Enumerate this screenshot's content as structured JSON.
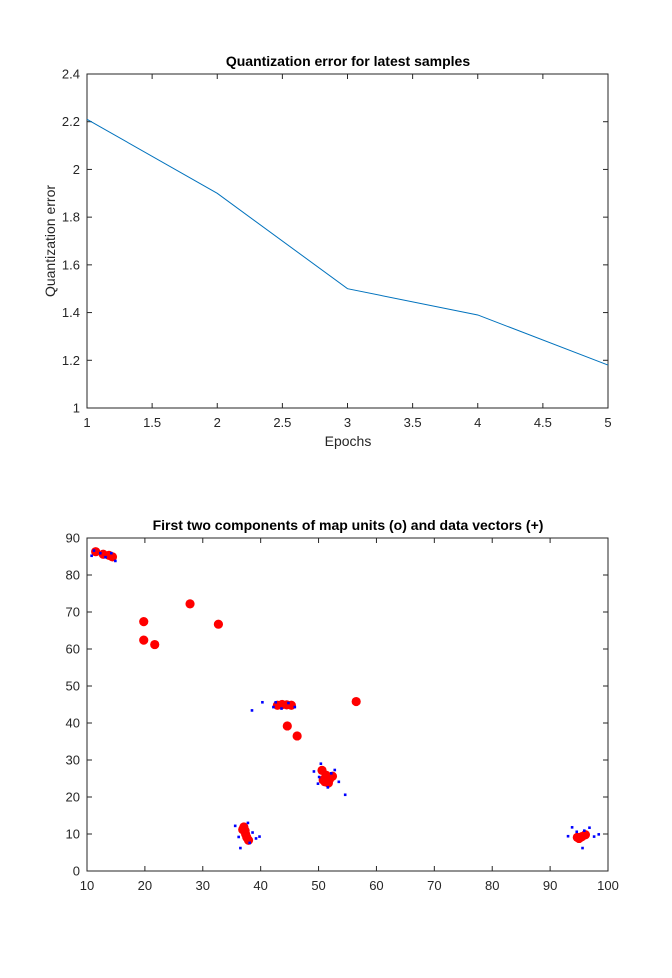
{
  "chart_data": [
    {
      "type": "line",
      "title": "Quantization error for latest samples",
      "xlabel": "Epochs",
      "ylabel": "Quantization error",
      "xlim": [
        1,
        5
      ],
      "ylim": [
        1,
        2.4
      ],
      "xticks": [
        "1",
        "1.5",
        "2",
        "2.5",
        "3",
        "3.5",
        "4",
        "4.5",
        "5"
      ],
      "yticks": [
        "1",
        "1.2",
        "1.4",
        "1.6",
        "1.8",
        "2",
        "2.2",
        "2.4"
      ],
      "grid": false,
      "line_color": "#0072bd",
      "series": [
        {
          "x": [
            1,
            2,
            3,
            4,
            5
          ],
          "values": [
            2.21,
            1.9,
            1.5,
            1.39,
            1.18
          ]
        }
      ]
    },
    {
      "type": "scatter",
      "title": "First two components of map units (o) and data vectors (+)",
      "xlabel": "",
      "ylabel": "",
      "xlim": [
        10,
        100
      ],
      "ylim": [
        0,
        90
      ],
      "xticks": [
        "10",
        "20",
        "30",
        "40",
        "50",
        "60",
        "70",
        "80",
        "90",
        "100"
      ],
      "yticks": [
        "0",
        "10",
        "20",
        "30",
        "40",
        "50",
        "60",
        "70",
        "80",
        "90"
      ],
      "grid": false,
      "series": [
        {
          "marker": "o",
          "color": "#ff0000",
          "points": [
            [
              11.5,
              86.3
            ],
            [
              12.8,
              85.6
            ],
            [
              13.8,
              85.3
            ],
            [
              14.4,
              84.9
            ],
            [
              19.8,
              67.4
            ],
            [
              19.8,
              62.4
            ],
            [
              21.7,
              61.2
            ],
            [
              27.8,
              72.2
            ],
            [
              32.7,
              66.7
            ],
            [
              42.9,
              44.8
            ],
            [
              43.7,
              45.0
            ],
            [
              44.5,
              44.9
            ],
            [
              45.3,
              44.8
            ],
            [
              44.6,
              39.2
            ],
            [
              46.3,
              36.5
            ],
            [
              56.5,
              45.8
            ],
            [
              50.6,
              27.2
            ],
            [
              51.3,
              25.9
            ],
            [
              51.9,
              24.8
            ],
            [
              51.1,
              24.1
            ],
            [
              52.4,
              25.6
            ],
            [
              50.8,
              24.6
            ],
            [
              51.7,
              23.8
            ],
            [
              37.1,
              11.9
            ],
            [
              37.3,
              10.9
            ],
            [
              37.4,
              10.0
            ],
            [
              37.6,
              9.1
            ],
            [
              37.9,
              8.3
            ],
            [
              36.9,
              11.2
            ],
            [
              94.7,
              9.1
            ],
            [
              95.5,
              9.3
            ],
            [
              96.1,
              9.8
            ],
            [
              95.0,
              8.8
            ]
          ]
        },
        {
          "marker": "+",
          "color": "#0000ff",
          "points": [
            [
              10.8,
              85.2
            ],
            [
              11.2,
              86.6
            ],
            [
              12.3,
              85.9
            ],
            [
              13.2,
              84.8
            ],
            [
              14.9,
              83.8
            ],
            [
              14.2,
              85.9
            ],
            [
              38.5,
              43.4
            ],
            [
              40.3,
              45.6
            ],
            [
              42.2,
              44.3
            ],
            [
              43.6,
              43.9
            ],
            [
              44.8,
              45.4
            ],
            [
              45.9,
              44.3
            ],
            [
              42.6,
              45.6
            ],
            [
              49.2,
              26.9
            ],
            [
              50.4,
              29.0
            ],
            [
              49.9,
              23.6
            ],
            [
              51.6,
              22.6
            ],
            [
              52.8,
              27.3
            ],
            [
              53.5,
              24.1
            ],
            [
              54.6,
              20.6
            ],
            [
              50.1,
              25.4
            ],
            [
              52.2,
              26.4
            ],
            [
              35.6,
              12.2
            ],
            [
              36.5,
              6.2
            ],
            [
              37.8,
              13.0
            ],
            [
              38.6,
              10.4
            ],
            [
              39.2,
              8.8
            ],
            [
              39.8,
              9.3
            ],
            [
              36.2,
              9.2
            ],
            [
              38.1,
              7.6
            ],
            [
              93.1,
              9.4
            ],
            [
              93.8,
              11.8
            ],
            [
              94.6,
              10.6
            ],
            [
              95.6,
              6.2
            ],
            [
              96.8,
              11.7
            ],
            [
              97.6,
              9.3
            ],
            [
              98.4,
              9.9
            ],
            [
              95.9,
              10.9
            ]
          ]
        }
      ]
    }
  ]
}
